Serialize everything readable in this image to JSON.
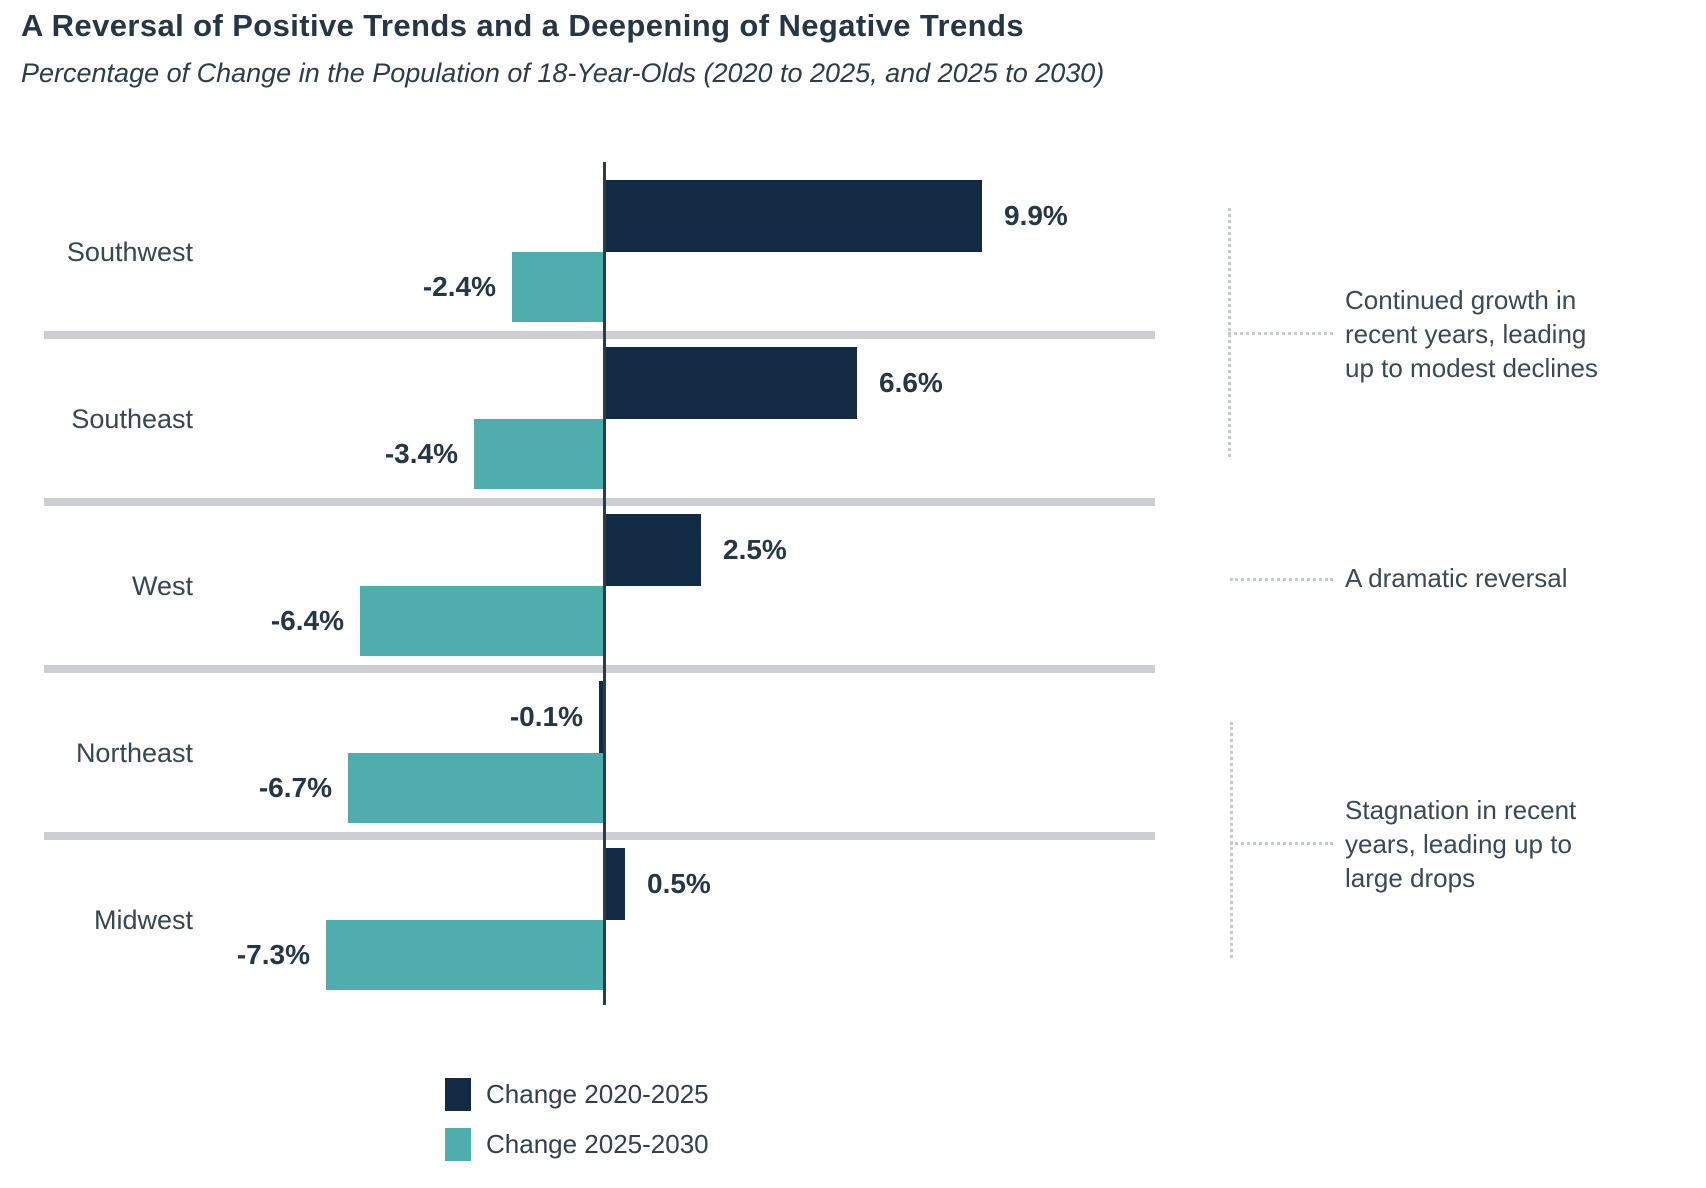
{
  "chart_data": {
    "type": "bar",
    "orientation": "horizontal",
    "title": "A Reversal of Positive Trends and a Deepening of Negative Trends",
    "subtitle": "Percentage of Change in the Population of 18-Year-Olds (2020 to 2025, and 2025 to 2030)",
    "categories": [
      "Southwest",
      "Southeast",
      "West",
      "Northeast",
      "Midwest"
    ],
    "series": [
      {
        "name": "Change 2020-2025",
        "color": "#122a43",
        "values": [
          9.9,
          6.6,
          2.5,
          -0.1,
          0.5
        ],
        "labels": [
          "9.9%",
          "6.6%",
          "2.5%",
          "-0.1%",
          "0.5%"
        ]
      },
      {
        "name": "Change 2025-2030",
        "color": "#4fadad",
        "values": [
          -2.4,
          -3.4,
          -6.4,
          -6.7,
          -7.3
        ],
        "labels": [
          "-2.4%",
          "-3.4%",
          "-6.4%",
          "-6.7%",
          "-7.3%"
        ]
      }
    ],
    "axis": {
      "zero_line": true,
      "xlim": [
        -7.5,
        10.5
      ],
      "gridlines": false,
      "tick_labels": "none"
    },
    "legend_position": "bottom-left",
    "annotations": [
      {
        "text": "Continued growth in recent years, leading up to modest declines",
        "lines": [
          "Continued growth in",
          "recent years, leading",
          "up to modest declines"
        ],
        "applies_to": [
          "Southwest",
          "Southeast"
        ]
      },
      {
        "text": "A dramatic reversal",
        "lines": [
          "A dramatic reversal"
        ],
        "applies_to": [
          "West"
        ]
      },
      {
        "text": "Stagnation in recent years, leading up to large drops",
        "lines": [
          "Stagnation in recent",
          "years, leading up to",
          "large drops"
        ],
        "applies_to": [
          "Northeast",
          "Midwest"
        ]
      }
    ],
    "colors": {
      "divider": "#ccced1",
      "axis_line": "#2e3a44",
      "annotation_line": "#c7cacd",
      "value_text": "#273645",
      "label_text": "#39454f"
    }
  }
}
